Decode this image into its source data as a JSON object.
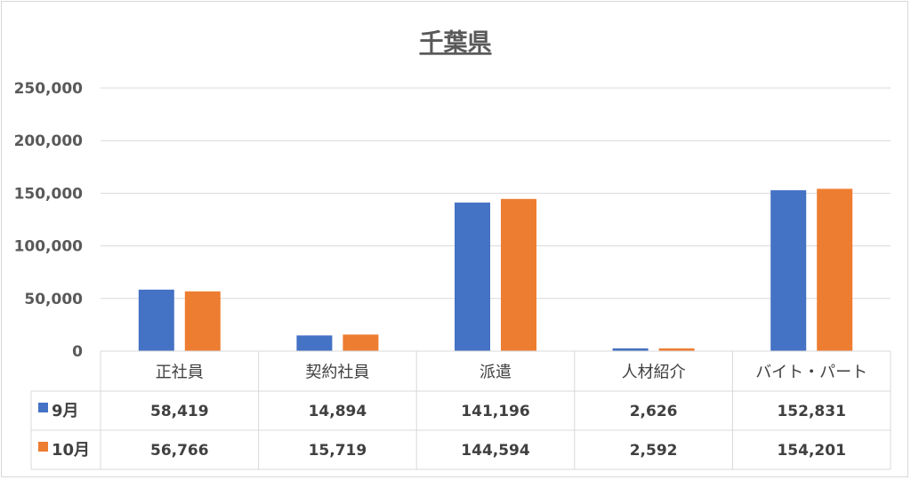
{
  "chart_data": {
    "type": "bar",
    "title": "千葉県",
    "categories": [
      "正社員",
      "契約社員",
      "派遣",
      "人材紹介",
      "バイト・パート"
    ],
    "series": [
      {
        "name": "9月",
        "color": "#4472c4",
        "values": [
          58419,
          14894,
          141196,
          2626,
          152831
        ],
        "labels": [
          "58,419",
          "14,894",
          "141,196",
          "2,626",
          "152,831"
        ]
      },
      {
        "name": "10月",
        "color": "#ed7d31",
        "values": [
          56766,
          15719,
          144594,
          2592,
          154201
        ],
        "labels": [
          "56,766",
          "15,719",
          "144,594",
          "2,592",
          "154,201"
        ]
      }
    ],
    "ylim": [
      0,
      250000
    ],
    "yticks": [
      0,
      50000,
      100000,
      150000,
      200000,
      250000
    ],
    "ytick_labels": [
      "0",
      "50,000",
      "100,000",
      "150,000",
      "200,000",
      "250,000"
    ],
    "grid": true,
    "legend": "data-table"
  }
}
